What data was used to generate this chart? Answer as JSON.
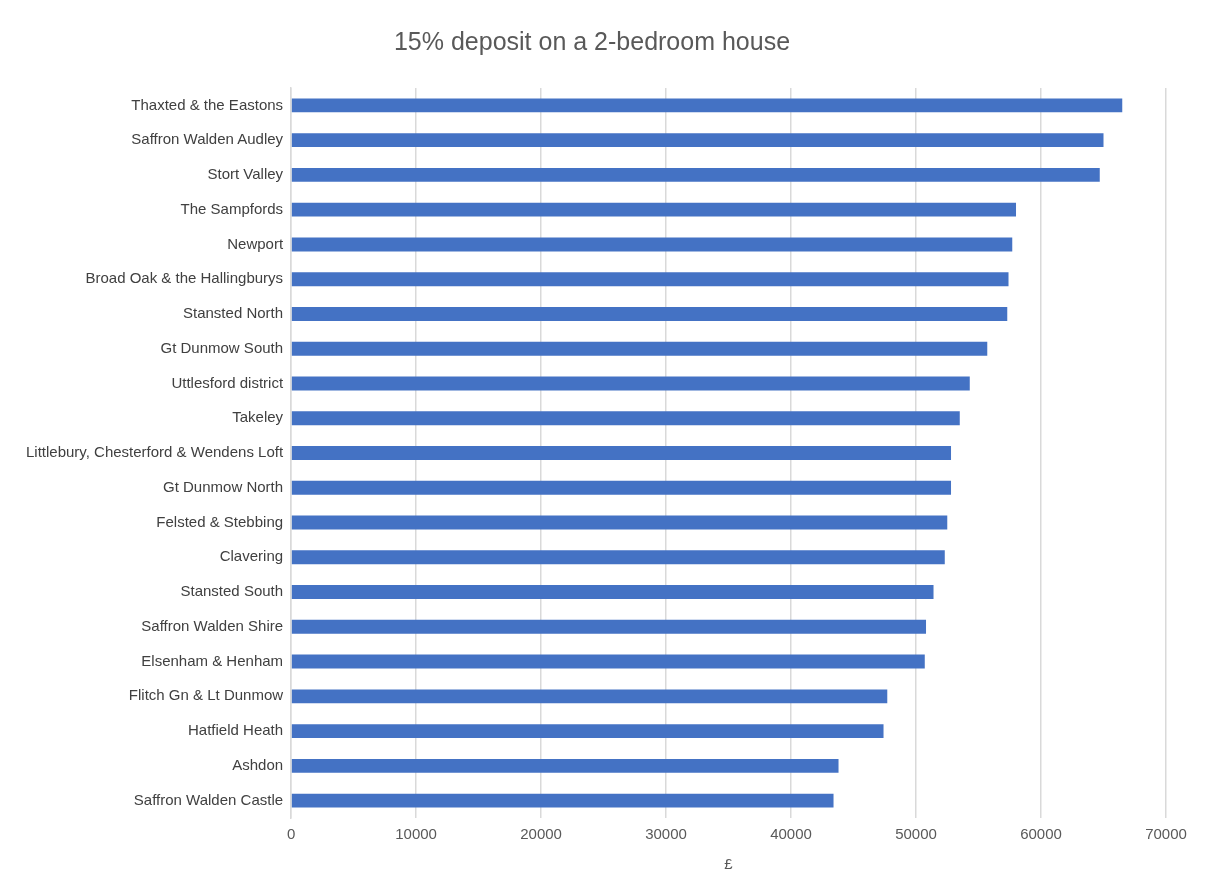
{
  "chart_data": {
    "type": "bar",
    "orientation": "horizontal",
    "title": "15% deposit on a 2-bedroom house",
    "xlabel": "£",
    "categories": [
      "Thaxted & the Eastons",
      "Saffron Walden Audley",
      "Stort Valley",
      "The Sampfords",
      "Newport",
      "Broad Oak & the Hallingburys",
      "Stansted North",
      "Gt Dunmow South",
      "Uttlesford district",
      "Takeley",
      "Littlebury, Chesterford & Wendens Loft",
      "Gt Dunmow North",
      "Felsted & Stebbing",
      "Clavering",
      "Stansted South",
      "Saffron Walden Shire",
      "Elsenham & Henham",
      "Flitch Gn & Lt Dunmow",
      "Hatfield Heath",
      "Ashdon",
      "Saffron Walden Castle"
    ],
    "values": [
      66500,
      65000,
      64700,
      58000,
      57700,
      57400,
      57300,
      55700,
      54300,
      53500,
      52800,
      52800,
      52500,
      52300,
      51400,
      50800,
      50700,
      47700,
      47400,
      43800,
      43400
    ],
    "color": "#4472c4",
    "xlim": [
      0,
      70000
    ],
    "xticks": [
      0,
      10000,
      20000,
      30000,
      40000,
      50000,
      60000,
      70000
    ],
    "grid": "x",
    "legend": false
  }
}
